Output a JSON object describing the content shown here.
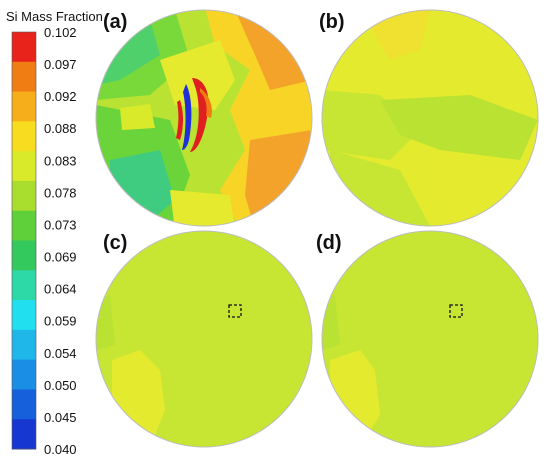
{
  "legend": {
    "title": "Si Mass Fraction",
    "ticks": [
      "0.102",
      "0.097",
      "0.092",
      "0.088",
      "0.083",
      "0.078",
      "0.073",
      "0.069",
      "0.064",
      "0.059",
      "0.054",
      "0.050",
      "0.045",
      "0.040"
    ],
    "colors": [
      "#e8231b",
      "#f07d14",
      "#f6ae1a",
      "#f7dc20",
      "#d9ea2a",
      "#a9de2e",
      "#5fcf3a",
      "#34c95c",
      "#2ed9a8",
      "#22dff0",
      "#1fb6ea",
      "#1a8ee4",
      "#1660db",
      "#1738d0"
    ]
  },
  "panels": [
    {
      "label": "(a)"
    },
    {
      "label": "(b)"
    },
    {
      "label": "(c)"
    },
    {
      "label": "(d)"
    }
  ],
  "colors": {
    "base": "#c7e634",
    "light": "#e6ea2e",
    "mid": "#a9de2e",
    "green": "#6ad43a",
    "teal": "#3fcc80",
    "orange": "#f3a22a",
    "yellow": "#f0e030",
    "red": "#e02020",
    "blue": "#2030d8"
  }
}
